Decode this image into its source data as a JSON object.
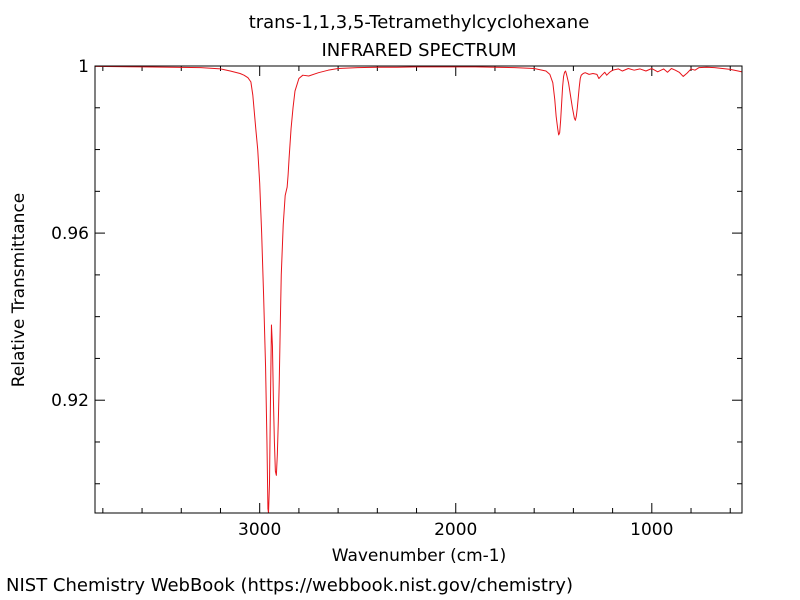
{
  "footer": "NIST Chemistry WebBook (https://webbook.nist.gov/chemistry)",
  "chart_data": {
    "type": "line",
    "title": "trans-1,1,3,5-Tetramethylcyclohexane",
    "subtitle": "INFRARED SPECTRUM",
    "xlabel": "Wavenumber (cm-1)",
    "ylabel": "Relative Transmittance",
    "xlim": [
      3840,
      540
    ],
    "ylim": [
      0.893,
      1.0
    ],
    "x_reversed": true,
    "x_ticks": [
      3000,
      2000,
      1000
    ],
    "x_tick_labels": [
      "3000",
      "2000",
      "1000"
    ],
    "y_ticks": [
      1.0,
      0.96,
      0.92
    ],
    "y_tick_labels": [
      "1",
      "0.96",
      "0.92"
    ],
    "grid": false,
    "line_color": "#e8141b",
    "series": [
      {
        "x": [
          3840,
          3600,
          3450,
          3300,
          3200,
          3150,
          3100,
          3080,
          3060,
          3045,
          3035,
          3020,
          3010,
          3000,
          2990,
          2980,
          2970,
          2963,
          2958,
          2955,
          2950,
          2945,
          2940,
          2935,
          2930,
          2925,
          2920,
          2915,
          2910,
          2905,
          2900,
          2895,
          2890,
          2880,
          2870,
          2860,
          2855,
          2850,
          2840,
          2830,
          2820,
          2800,
          2780,
          2750,
          2700,
          2650,
          2600,
          2500,
          2400,
          2300,
          2200,
          2100,
          2000,
          1900,
          1800,
          1700,
          1600,
          1540,
          1520,
          1505,
          1495,
          1488,
          1480,
          1475,
          1470,
          1465,
          1460,
          1455,
          1450,
          1445,
          1440,
          1435,
          1425,
          1415,
          1405,
          1395,
          1390,
          1385,
          1380,
          1375,
          1370,
          1365,
          1360,
          1350,
          1340,
          1330,
          1320,
          1300,
          1280,
          1270,
          1255,
          1240,
          1230,
          1215,
          1200,
          1170,
          1150,
          1120,
          1090,
          1060,
          1030,
          1000,
          970,
          940,
          920,
          900,
          880,
          860,
          840,
          820,
          800,
          780,
          760,
          720,
          680,
          640,
          600,
          560,
          540
        ],
        "y": [
          0.9999,
          0.9998,
          0.9997,
          0.9996,
          0.9993,
          0.9988,
          0.9982,
          0.9978,
          0.9972,
          0.9962,
          0.993,
          0.985,
          0.98,
          0.972,
          0.96,
          0.945,
          0.928,
          0.91,
          0.894,
          0.893,
          0.9,
          0.92,
          0.938,
          0.933,
          0.92,
          0.91,
          0.903,
          0.902,
          0.907,
          0.915,
          0.925,
          0.938,
          0.95,
          0.962,
          0.969,
          0.971,
          0.974,
          0.978,
          0.985,
          0.99,
          0.994,
          0.997,
          0.9978,
          0.9976,
          0.9984,
          0.999,
          0.9994,
          0.9996,
          0.9997,
          0.9997,
          0.9998,
          0.9998,
          0.9998,
          0.9998,
          0.9997,
          0.9996,
          0.9994,
          0.9988,
          0.998,
          0.996,
          0.992,
          0.988,
          0.985,
          0.9835,
          0.984,
          0.987,
          0.991,
          0.995,
          0.9975,
          0.9985,
          0.9988,
          0.998,
          0.996,
          0.993,
          0.99,
          0.9875,
          0.987,
          0.988,
          0.99,
          0.9925,
          0.995,
          0.997,
          0.9978,
          0.9982,
          0.9984,
          0.9982,
          0.998,
          0.9982,
          0.998,
          0.997,
          0.9978,
          0.9985,
          0.9978,
          0.9985,
          0.999,
          0.9993,
          0.9988,
          0.9994,
          0.999,
          0.9993,
          0.9988,
          0.9994,
          0.9986,
          0.9993,
          0.9985,
          0.9994,
          0.999,
          0.9985,
          0.9975,
          0.9983,
          0.9993,
          0.999,
          0.9996,
          0.9997,
          0.9996,
          0.9994,
          0.9992,
          0.9988,
          0.9986
        ]
      }
    ]
  }
}
